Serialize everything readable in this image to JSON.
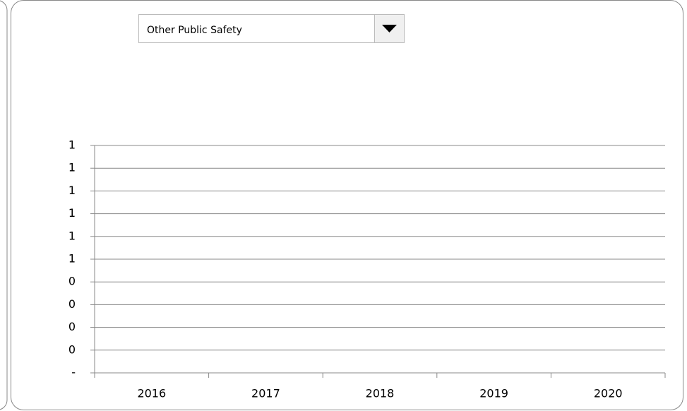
{
  "dropdown": {
    "selected": "Other Public Safety"
  },
  "chart_data": {
    "type": "bar",
    "categories": [
      "2016",
      "2017",
      "2018",
      "2019",
      "2020"
    ],
    "ylim": [
      0,
      1
    ],
    "yticks": [
      {
        "value": 0,
        "label": "-"
      },
      {
        "value": 0.1,
        "label": "0"
      },
      {
        "value": 0.2,
        "label": "0"
      },
      {
        "value": 0.3,
        "label": "0"
      },
      {
        "value": 0.4,
        "label": "0"
      },
      {
        "value": 0.5,
        "label": "1"
      },
      {
        "value": 0.6,
        "label": "1"
      },
      {
        "value": 0.7,
        "label": "1"
      },
      {
        "value": 0.8,
        "label": "1"
      },
      {
        "value": 0.9,
        "label": "1"
      },
      {
        "value": 1,
        "label": "1"
      }
    ],
    "grid": true
  }
}
